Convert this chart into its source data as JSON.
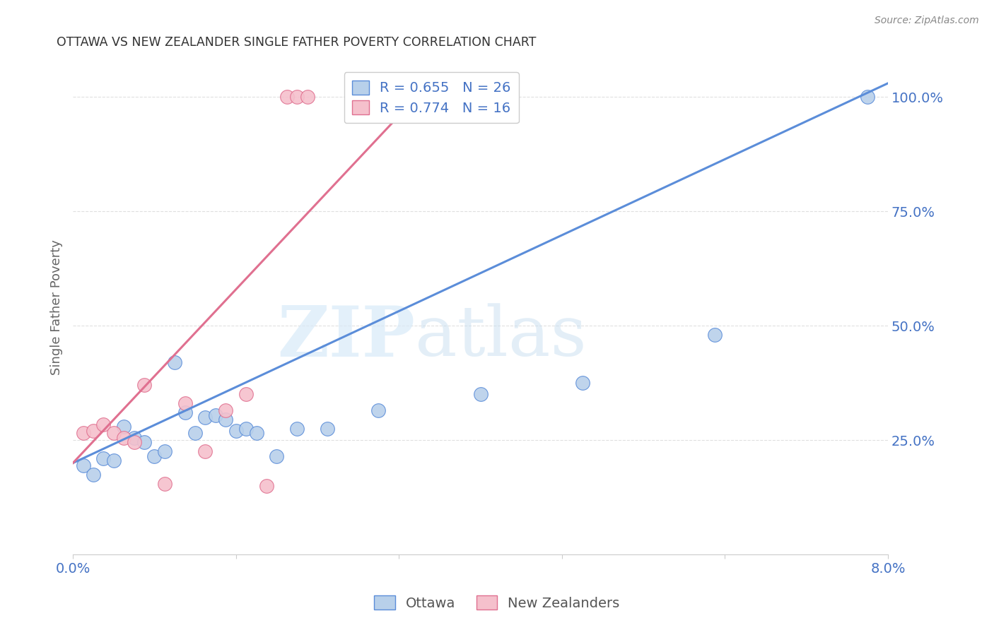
{
  "title": "OTTAWA VS NEW ZEALANDER SINGLE FATHER POVERTY CORRELATION CHART",
  "source": "Source: ZipAtlas.com",
  "ylabel": "Single Father Poverty",
  "watermark_zip": "ZIP",
  "watermark_atlas": "atlas",
  "legend_ottawa": "R = 0.655   N = 26",
  "legend_nz": "R = 0.774   N = 16",
  "legend_label_ottawa": "Ottawa",
  "legend_label_nz": "New Zealanders",
  "ottawa_color": "#b8d0ea",
  "ottawa_line_color": "#5b8dd9",
  "nz_color": "#f5c0cc",
  "nz_line_color": "#e07090",
  "text_blue": "#4472c4",
  "grid_color": "#e0e0e0",
  "ottawa_points_x": [
    0.001,
    0.002,
    0.003,
    0.004,
    0.005,
    0.006,
    0.007,
    0.008,
    0.009,
    0.01,
    0.011,
    0.012,
    0.013,
    0.014,
    0.015,
    0.016,
    0.017,
    0.018,
    0.02,
    0.022,
    0.025,
    0.03,
    0.04,
    0.05,
    0.063,
    0.078
  ],
  "ottawa_points_y": [
    0.195,
    0.175,
    0.21,
    0.205,
    0.28,
    0.255,
    0.245,
    0.215,
    0.225,
    0.42,
    0.31,
    0.265,
    0.3,
    0.305,
    0.295,
    0.27,
    0.275,
    0.265,
    0.215,
    0.275,
    0.275,
    0.315,
    0.35,
    0.375,
    0.48,
    1.0
  ],
  "nz_points_x": [
    0.001,
    0.002,
    0.003,
    0.004,
    0.005,
    0.006,
    0.007,
    0.009,
    0.011,
    0.013,
    0.015,
    0.017,
    0.019,
    0.021,
    0.022,
    0.023
  ],
  "nz_points_y": [
    0.265,
    0.27,
    0.285,
    0.265,
    0.255,
    0.245,
    0.37,
    0.155,
    0.33,
    0.225,
    0.315,
    0.35,
    0.15,
    1.0,
    1.0,
    1.0
  ],
  "blue_line_x": [
    0.0,
    0.08
  ],
  "blue_line_y": [
    0.2,
    1.03
  ],
  "pink_line_x": [
    0.0,
    0.035
  ],
  "pink_line_y": [
    0.2,
    1.03
  ],
  "xlim": [
    0.0,
    0.08
  ],
  "ylim": [
    0.0,
    1.08
  ],
  "xticks": [
    0.0,
    0.016,
    0.032,
    0.048,
    0.064,
    0.08
  ],
  "xticklabels": [
    "0.0%",
    "",
    "",
    "",
    "",
    "8.0%"
  ],
  "yticks": [
    0.25,
    0.5,
    0.75,
    1.0
  ],
  "yticklabels": [
    "25.0%",
    "50.0%",
    "75.0%",
    "100.0%"
  ]
}
